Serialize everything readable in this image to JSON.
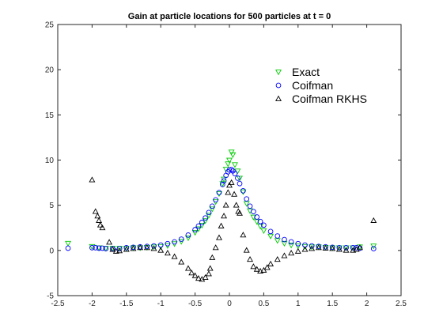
{
  "chart_data": {
    "type": "scatter",
    "title": "Gain at particle locations for 500 particles at t = 0",
    "xlabel": "",
    "ylabel": "",
    "xlim": [
      -2.5,
      2.5
    ],
    "ylim": [
      -5,
      25
    ],
    "xticks": [
      -2.5,
      -2,
      -1.5,
      -1,
      -0.5,
      0,
      0.5,
      1,
      1.5,
      2,
      2.5
    ],
    "xtick_labels": [
      "-2.5",
      "-2",
      "-1.5",
      "-1",
      "-0.5",
      "0",
      "0.5",
      "1",
      "1.5",
      "2",
      "2.5"
    ],
    "yticks": [
      -5,
      0,
      5,
      10,
      15,
      20,
      25
    ],
    "ytick_labels": [
      "-5",
      "0",
      "5",
      "10",
      "15",
      "20",
      "25"
    ],
    "grid": false,
    "legend_position": "top-right",
    "series": [
      {
        "name": "Exact",
        "marker": "triangle-down",
        "color": "#00cc00",
        "points": [
          [
            -2.35,
            0.8
          ],
          [
            -2.0,
            0.45
          ],
          [
            -1.9,
            0.3
          ],
          [
            -1.8,
            0.25
          ],
          [
            -1.7,
            0.25
          ],
          [
            -1.6,
            0.25
          ],
          [
            -1.5,
            0.25
          ],
          [
            -1.4,
            0.3
          ],
          [
            -1.3,
            0.3
          ],
          [
            -1.2,
            0.35
          ],
          [
            -1.1,
            0.4
          ],
          [
            -1.0,
            0.45
          ],
          [
            -0.9,
            0.55
          ],
          [
            -0.8,
            0.75
          ],
          [
            -0.7,
            1.0
          ],
          [
            -0.6,
            1.4
          ],
          [
            -0.5,
            2.0
          ],
          [
            -0.45,
            2.4
          ],
          [
            -0.4,
            2.8
          ],
          [
            -0.35,
            3.3
          ],
          [
            -0.3,
            3.9
          ],
          [
            -0.25,
            4.6
          ],
          [
            -0.2,
            5.4
          ],
          [
            -0.15,
            6.3
          ],
          [
            -0.1,
            7.4
          ],
          [
            -0.08,
            7.9
          ],
          [
            -0.05,
            9.0
          ],
          [
            -0.02,
            9.6
          ],
          [
            0.0,
            10.0
          ],
          [
            0.03,
            10.9
          ],
          [
            0.05,
            10.6
          ],
          [
            0.08,
            9.5
          ],
          [
            0.12,
            8.8
          ],
          [
            0.15,
            8.0
          ],
          [
            0.2,
            6.5
          ],
          [
            0.25,
            5.2
          ],
          [
            0.3,
            4.4
          ],
          [
            0.35,
            3.7
          ],
          [
            0.4,
            3.2
          ],
          [
            0.45,
            2.7
          ],
          [
            0.5,
            2.2
          ],
          [
            0.6,
            1.6
          ],
          [
            0.7,
            1.1
          ],
          [
            0.8,
            0.8
          ],
          [
            0.9,
            0.6
          ],
          [
            1.0,
            0.5
          ],
          [
            1.1,
            0.45
          ],
          [
            1.2,
            0.4
          ],
          [
            1.3,
            0.4
          ],
          [
            1.4,
            0.35
          ],
          [
            1.5,
            0.3
          ],
          [
            1.6,
            0.3
          ],
          [
            1.7,
            0.3
          ],
          [
            1.8,
            0.3
          ],
          [
            1.9,
            0.4
          ],
          [
            2.1,
            0.5
          ]
        ]
      },
      {
        "name": "Coifman",
        "marker": "circle",
        "color": "#0000ff",
        "points": [
          [
            -2.35,
            0.25
          ],
          [
            -2.0,
            0.3
          ],
          [
            -1.95,
            0.3
          ],
          [
            -1.9,
            0.25
          ],
          [
            -1.85,
            0.25
          ],
          [
            -1.8,
            0.2
          ],
          [
            -1.7,
            0.2
          ],
          [
            -1.6,
            0.2
          ],
          [
            -1.5,
            0.3
          ],
          [
            -1.4,
            0.35
          ],
          [
            -1.3,
            0.4
          ],
          [
            -1.2,
            0.45
          ],
          [
            -1.1,
            0.5
          ],
          [
            -1.0,
            0.6
          ],
          [
            -0.9,
            0.75
          ],
          [
            -0.8,
            0.95
          ],
          [
            -0.7,
            1.25
          ],
          [
            -0.6,
            1.7
          ],
          [
            -0.5,
            2.3
          ],
          [
            -0.45,
            2.7
          ],
          [
            -0.4,
            3.1
          ],
          [
            -0.35,
            3.6
          ],
          [
            -0.3,
            4.2
          ],
          [
            -0.25,
            4.9
          ],
          [
            -0.2,
            5.6
          ],
          [
            -0.15,
            6.4
          ],
          [
            -0.1,
            7.3
          ],
          [
            -0.08,
            7.7
          ],
          [
            -0.05,
            8.3
          ],
          [
            -0.02,
            8.7
          ],
          [
            0.0,
            8.9
          ],
          [
            0.03,
            8.95
          ],
          [
            0.05,
            8.8
          ],
          [
            0.08,
            8.5
          ],
          [
            0.12,
            8.0
          ],
          [
            0.15,
            7.4
          ],
          [
            0.2,
            6.6
          ],
          [
            0.25,
            5.7
          ],
          [
            0.3,
            4.9
          ],
          [
            0.35,
            4.3
          ],
          [
            0.4,
            3.7
          ],
          [
            0.45,
            3.2
          ],
          [
            0.5,
            2.8
          ],
          [
            0.6,
            2.1
          ],
          [
            0.7,
            1.6
          ],
          [
            0.8,
            1.2
          ],
          [
            0.9,
            0.95
          ],
          [
            1.0,
            0.75
          ],
          [
            1.1,
            0.6
          ],
          [
            1.2,
            0.5
          ],
          [
            1.3,
            0.45
          ],
          [
            1.4,
            0.4
          ],
          [
            1.5,
            0.35
          ],
          [
            1.6,
            0.3
          ],
          [
            1.7,
            0.3
          ],
          [
            1.8,
            0.3
          ],
          [
            1.85,
            0.3
          ],
          [
            1.9,
            0.25
          ],
          [
            2.1,
            0.2
          ]
        ]
      },
      {
        "name": "Coifman RKHS",
        "marker": "triangle-up",
        "color": "#000000",
        "points": [
          [
            -2.0,
            7.8
          ],
          [
            -1.95,
            4.3
          ],
          [
            -1.92,
            3.8
          ],
          [
            -1.9,
            3.3
          ],
          [
            -1.88,
            2.8
          ],
          [
            -1.85,
            2.5
          ],
          [
            -1.75,
            0.9
          ],
          [
            -1.7,
            0.1
          ],
          [
            -1.65,
            -0.1
          ],
          [
            -1.6,
            -0.05
          ],
          [
            -1.5,
            0.1
          ],
          [
            -1.4,
            0.2
          ],
          [
            -1.3,
            0.3
          ],
          [
            -1.2,
            0.3
          ],
          [
            -1.1,
            0.2
          ],
          [
            -1.0,
            0.0
          ],
          [
            -0.9,
            -0.3
          ],
          [
            -0.8,
            -0.7
          ],
          [
            -0.7,
            -1.3
          ],
          [
            -0.6,
            -2.0
          ],
          [
            -0.55,
            -2.5
          ],
          [
            -0.5,
            -2.8
          ],
          [
            -0.45,
            -3.1
          ],
          [
            -0.4,
            -3.2
          ],
          [
            -0.35,
            -3.0
          ],
          [
            -0.3,
            -2.6
          ],
          [
            -0.28,
            -2.0
          ],
          [
            -0.25,
            -0.8
          ],
          [
            -0.2,
            0.3
          ],
          [
            -0.15,
            1.4
          ],
          [
            -0.12,
            2.7
          ],
          [
            -0.08,
            3.8
          ],
          [
            -0.05,
            5.0
          ],
          [
            -0.02,
            6.4
          ],
          [
            0.0,
            7.2
          ],
          [
            0.03,
            7.5
          ],
          [
            0.07,
            6.2
          ],
          [
            0.1,
            5.0
          ],
          [
            0.13,
            4.3
          ],
          [
            0.15,
            4.1
          ],
          [
            0.2,
            1.7
          ],
          [
            0.25,
            0.0
          ],
          [
            0.3,
            -1.0
          ],
          [
            0.35,
            -1.8
          ],
          [
            0.4,
            -2.1
          ],
          [
            0.45,
            -2.3
          ],
          [
            0.5,
            -2.2
          ],
          [
            0.55,
            -1.9
          ],
          [
            0.6,
            -1.5
          ],
          [
            0.7,
            -1.0
          ],
          [
            0.8,
            -0.6
          ],
          [
            0.9,
            -0.3
          ],
          [
            1.0,
            -0.1
          ],
          [
            1.1,
            0.1
          ],
          [
            1.2,
            0.2
          ],
          [
            1.3,
            0.3
          ],
          [
            1.4,
            0.25
          ],
          [
            1.5,
            0.2
          ],
          [
            1.6,
            0.1
          ],
          [
            1.7,
            0.0
          ],
          [
            1.8,
            0.0
          ],
          [
            1.85,
            0.1
          ],
          [
            1.9,
            0.3
          ],
          [
            2.1,
            3.3
          ]
        ]
      }
    ]
  }
}
